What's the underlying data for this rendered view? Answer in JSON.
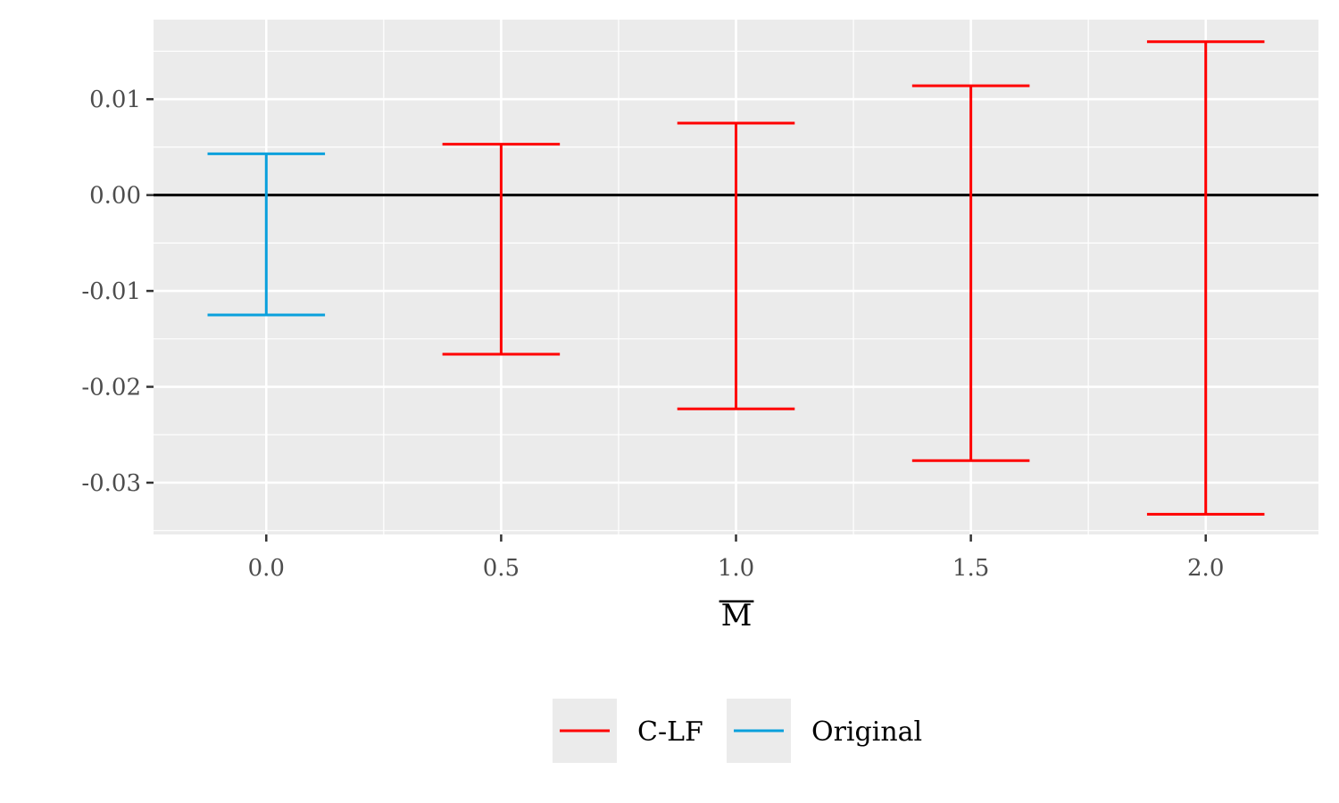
{
  "chart_data": {
    "type": "errorbar",
    "title": "",
    "xlabel": "M",
    "xlabel_overline": true,
    "ylabel": "",
    "x_ticks": [
      0.0,
      0.5,
      1.0,
      1.5,
      2.0
    ],
    "x_tick_labels": [
      "0.0",
      "0.5",
      "1.0",
      "1.5",
      "2.0"
    ],
    "y_ticks": [
      0.01,
      0.0,
      -0.01,
      -0.02,
      -0.03
    ],
    "y_tick_labels": [
      "0.01",
      "0.00",
      "-0.01",
      "-0.02",
      "-0.03"
    ],
    "xlim": [
      -0.24,
      2.24
    ],
    "ylim": [
      -0.0354,
      0.0183
    ],
    "reference_line_y": 0.0,
    "grid": true,
    "legend_position": "bottom",
    "series": [
      {
        "name": "C-LF",
        "color": "#ff0000",
        "points": [
          {
            "x": 0.5,
            "lower": -0.0166,
            "upper": 0.0053
          },
          {
            "x": 1.0,
            "lower": -0.0223,
            "upper": 0.0075
          },
          {
            "x": 1.5,
            "lower": -0.0277,
            "upper": 0.0114
          },
          {
            "x": 2.0,
            "lower": -0.0333,
            "upper": 0.016
          }
        ]
      },
      {
        "name": "Original",
        "color": "#0aa0dc",
        "points": [
          {
            "x": 0.0,
            "lower": -0.0125,
            "upper": 0.0043
          }
        ]
      }
    ]
  }
}
